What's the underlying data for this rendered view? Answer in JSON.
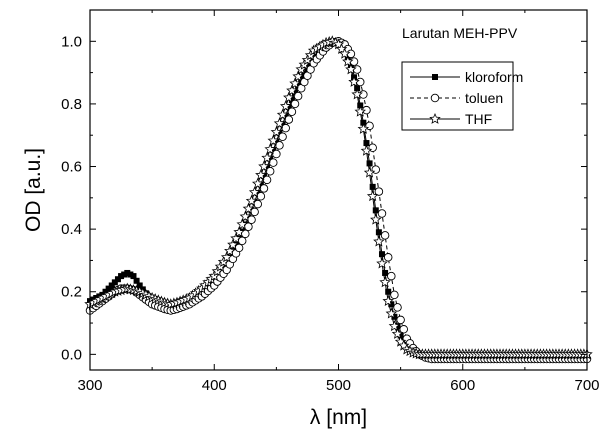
{
  "chart_data": {
    "type": "line",
    "title": "Larutan MEH-PPV",
    "xlabel": "λ [nm]",
    "ylabel": "OD [a.u.]",
    "xlim": [
      300,
      700
    ],
    "ylim": [
      -0.05,
      1.1
    ],
    "xticks": [
      300,
      400,
      500,
      600,
      700
    ],
    "yticks": [
      0.0,
      0.2,
      0.4,
      0.6,
      0.8,
      1.0
    ],
    "xtick_labels": [
      "300",
      "400",
      "500",
      "600",
      "700"
    ],
    "ytick_labels": [
      "0.0",
      "0.2",
      "0.4",
      "0.6",
      "0.8",
      "1.0"
    ],
    "grid": false,
    "legend_position": "top-right",
    "series": [
      {
        "name": "kloroform",
        "marker": "filled-square",
        "line": "solid",
        "x": [
          300,
          310,
          320,
          325,
          330,
          335,
          340,
          350,
          360,
          365,
          370,
          380,
          390,
          400,
          410,
          420,
          430,
          440,
          450,
          460,
          470,
          480,
          490,
          495,
          500,
          505,
          510,
          515,
          520,
          525,
          530,
          535,
          540,
          545,
          550,
          555,
          560,
          565,
          570,
          575,
          580,
          590,
          600,
          620,
          640,
          660,
          680,
          700
        ],
        "y": [
          0.17,
          0.19,
          0.23,
          0.25,
          0.26,
          0.25,
          0.22,
          0.17,
          0.145,
          0.14,
          0.145,
          0.16,
          0.19,
          0.23,
          0.29,
          0.37,
          0.46,
          0.57,
          0.68,
          0.79,
          0.88,
          0.95,
          0.99,
          1.0,
          0.995,
          0.97,
          0.92,
          0.85,
          0.74,
          0.61,
          0.46,
          0.32,
          0.2,
          0.12,
          0.06,
          0.03,
          0.01,
          0.0,
          -0.005,
          -0.005,
          -0.005,
          -0.005,
          -0.005,
          -0.005,
          -0.005,
          -0.005,
          -0.005,
          -0.005
        ]
      },
      {
        "name": "toluen",
        "marker": "open-circle",
        "line": "dashed",
        "x": [
          300,
          310,
          320,
          325,
          330,
          335,
          340,
          350,
          360,
          365,
          370,
          380,
          390,
          400,
          410,
          420,
          430,
          440,
          450,
          460,
          470,
          480,
          490,
          495,
          500,
          505,
          510,
          515,
          520,
          525,
          530,
          535,
          540,
          545,
          550,
          555,
          560,
          565,
          570,
          575,
          580,
          590,
          600,
          620,
          640,
          660,
          680,
          700
        ],
        "y": [
          0.14,
          0.17,
          0.2,
          0.21,
          0.21,
          0.205,
          0.19,
          0.16,
          0.145,
          0.14,
          0.145,
          0.16,
          0.185,
          0.22,
          0.27,
          0.34,
          0.43,
          0.53,
          0.64,
          0.75,
          0.85,
          0.93,
          0.98,
          0.995,
          1.0,
          0.99,
          0.96,
          0.91,
          0.83,
          0.73,
          0.59,
          0.45,
          0.31,
          0.19,
          0.11,
          0.05,
          0.02,
          0.0,
          -0.01,
          -0.015,
          -0.015,
          -0.015,
          -0.015,
          -0.015,
          -0.015,
          -0.015,
          -0.015,
          -0.015
        ]
      },
      {
        "name": "THF",
        "marker": "open-star",
        "line": "solid",
        "x": [
          300,
          310,
          320,
          325,
          330,
          335,
          340,
          350,
          360,
          365,
          370,
          380,
          390,
          400,
          410,
          420,
          430,
          440,
          450,
          460,
          470,
          480,
          490,
          495,
          500,
          505,
          510,
          515,
          520,
          525,
          530,
          535,
          540,
          545,
          550,
          555,
          560,
          565,
          570,
          575,
          580,
          590,
          600,
          620,
          640,
          660,
          680,
          700
        ],
        "y": [
          0.16,
          0.18,
          0.2,
          0.205,
          0.21,
          0.205,
          0.2,
          0.18,
          0.165,
          0.16,
          0.165,
          0.18,
          0.21,
          0.25,
          0.31,
          0.39,
          0.49,
          0.6,
          0.71,
          0.82,
          0.91,
          0.97,
          0.995,
          1.0,
          0.99,
          0.96,
          0.91,
          0.83,
          0.72,
          0.58,
          0.43,
          0.29,
          0.17,
          0.09,
          0.04,
          0.015,
          0.005,
          0.0,
          0.0,
          0.0,
          0.0,
          0.0,
          0.0,
          0.0,
          0.0,
          0.0,
          0.0,
          0.0
        ]
      }
    ]
  }
}
